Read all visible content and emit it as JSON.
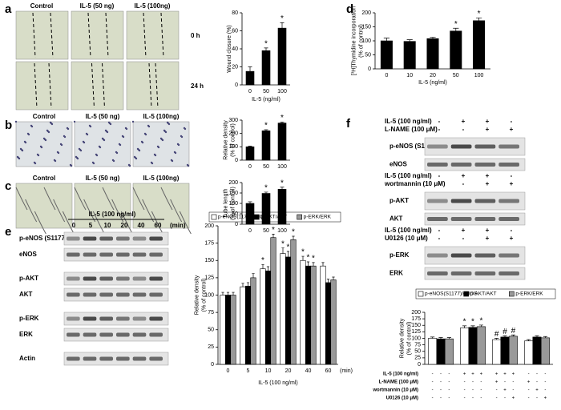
{
  "panel_labels": [
    "a",
    "b",
    "c",
    "d",
    "e",
    "f"
  ],
  "images": {
    "a": {
      "columns": [
        "Control",
        "IL-5 (50 ng)",
        "IL-5 (100ng)"
      ],
      "rows": [
        "0 h",
        "24 h"
      ]
    },
    "b": {
      "columns": [
        "Control",
        "IL-5 (50 ng)",
        "IL-5 (100ng)"
      ]
    },
    "c": {
      "columns": [
        "Control",
        "IL-5 (50 ng)",
        "IL-5 (100ng)"
      ]
    }
  },
  "blots": {
    "e": {
      "header": "IL-5 (100 ng/ml)",
      "lanes": [
        "0",
        "5",
        "10",
        "20",
        "40",
        "60"
      ],
      "unit": "(min)",
      "rows": [
        "p-eNOS (S1177)",
        "eNOS",
        "p-AKT",
        "AKT",
        "p-ERK",
        "ERK",
        "Actin"
      ]
    },
    "f": {
      "groups": [
        {
          "treatments": [
            {
              "name": "IL-5 (100 ng/ml)",
              "signs": [
                "-",
                "+",
                "+",
                "-"
              ]
            },
            {
              "name": "L-NAME (100 μM)",
              "signs": [
                "-",
                "-",
                "+",
                "+"
              ]
            }
          ],
          "rows": [
            "p-eNOS (S1177)",
            "eNOS"
          ]
        },
        {
          "treatments": [
            {
              "name": "IL-5 (100 ng/ml)",
              "signs": [
                "-",
                "+",
                "+",
                "-"
              ]
            },
            {
              "name": "wortmannin (10 μM)",
              "signs": [
                "-",
                "-",
                "+",
                "+"
              ]
            }
          ],
          "rows": [
            "p-AKT",
            "AKT"
          ]
        },
        {
          "treatments": [
            {
              "name": "IL-5 (100 ng/ml)",
              "signs": [
                "-",
                "+",
                "+",
                "-"
              ]
            },
            {
              "name": "U0126 (10 μM)",
              "signs": [
                "-",
                "-",
                "+",
                "+"
              ]
            }
          ],
          "rows": [
            "p-ERK",
            "ERK"
          ]
        }
      ]
    }
  },
  "chart_data": [
    {
      "type": "bar",
      "ylabel": [
        "Wound closure (%)"
      ],
      "xlabel": "IL-5 (ng/ml)",
      "categories": [
        "0",
        "50",
        "100"
      ],
      "values": [
        15,
        38,
        63
      ],
      "errors": [
        5,
        3,
        6
      ],
      "significance": [
        null,
        "*",
        "*"
      ],
      "color": "#000000",
      "ylim": [
        0,
        80
      ],
      "yticks": [
        0,
        20,
        40,
        60,
        80
      ]
    },
    {
      "type": "bar",
      "ylabel": [
        "[³H]Thymidine incorporation",
        "(% of control)"
      ],
      "xlabel": "IL-5 (ng/ml)",
      "categories": [
        "0",
        "10",
        "20",
        "50",
        "100"
      ],
      "values": [
        100,
        98,
        108,
        135,
        172
      ],
      "errors": [
        10,
        6,
        5,
        10,
        10
      ],
      "significance": [
        null,
        null,
        null,
        "*",
        "*"
      ],
      "color": "#000000",
      "ylim": [
        0,
        200
      ],
      "yticks": [
        0,
        50,
        100,
        150,
        200
      ]
    },
    {
      "type": "bar",
      "ylabel": [
        "Relative density",
        "(% of control)"
      ],
      "categories": [
        "0",
        "50",
        "100"
      ],
      "values": [
        100,
        220,
        278
      ],
      "errors": [
        5,
        8,
        8
      ],
      "significance": [
        null,
        "*",
        "*"
      ],
      "color": "#000000",
      "ylim": [
        0,
        300
      ],
      "yticks": [
        0,
        100,
        200,
        300
      ]
    },
    {
      "type": "bar",
      "ylabel": [
        "Tube length",
        "(% of control)"
      ],
      "categories": [
        "0",
        "50",
        "100"
      ],
      "values": [
        100,
        148,
        168
      ],
      "errors": [
        8,
        6,
        10
      ],
      "significance": [
        null,
        "*",
        "*"
      ],
      "color": "#000000",
      "ylim": [
        0,
        200
      ],
      "yticks": [
        0,
        50,
        100,
        150,
        200
      ]
    },
    {
      "type": "bar",
      "ylabel": [
        "Relative density",
        "(% of control)"
      ],
      "xlabel": "IL-5 (100 ng/ml)",
      "x_unit": "(min)",
      "categories": [
        "0",
        "5",
        "10",
        "20",
        "40",
        "60"
      ],
      "series": [
        {
          "name": "p-eNOS(1177)/eNOS",
          "color": "#ffffff",
          "values": [
            100,
            112,
            138,
            160,
            150,
            142
          ],
          "errors": [
            4,
            5,
            6,
            8,
            6,
            5
          ],
          "significance": [
            null,
            null,
            "*",
            "*",
            "*",
            null
          ]
        },
        {
          "name": "p-AKT/AKT",
          "color": "#000000",
          "values": [
            100,
            113,
            135,
            155,
            142,
            118
          ],
          "errors": [
            4,
            5,
            6,
            8,
            6,
            5
          ],
          "significance": [
            null,
            null,
            null,
            "*",
            "*",
            null
          ]
        },
        {
          "name": "p-ERK/ERK",
          "color": "#999999",
          "values": [
            100,
            125,
            183,
            180,
            142,
            122
          ],
          "errors": [
            4,
            6,
            5,
            5,
            5,
            4
          ],
          "significance": [
            null,
            null,
            "*",
            "*",
            "*",
            null
          ]
        }
      ],
      "ylim": [
        0,
        200
      ],
      "yticks": [
        0,
        25,
        50,
        75,
        100,
        125,
        150,
        175,
        200
      ]
    },
    {
      "type": "bar",
      "ylabel": [
        "Relative density",
        "(% of control)"
      ],
      "categories": [
        null,
        null,
        null,
        null
      ],
      "series": [
        {
          "name": "p-eNOS(S1177)/eNOS",
          "color": "#ffffff",
          "values": [
            100,
            140,
            95,
            90
          ],
          "errors": [
            5,
            8,
            5,
            5
          ],
          "significance": [
            null,
            "*",
            "#",
            null
          ]
        },
        {
          "name": "p-AKT/AKT",
          "color": "#000000",
          "values": [
            98,
            142,
            105,
            105
          ],
          "errors": [
            5,
            6,
            5,
            5
          ],
          "significance": [
            null,
            "*",
            "#",
            null
          ]
        },
        {
          "name": "p-ERK/ERK",
          "color": "#999999",
          "values": [
            98,
            145,
            108,
            102
          ],
          "errors": [
            5,
            6,
            5,
            5
          ],
          "significance": [
            null,
            "*",
            "#",
            null
          ]
        }
      ],
      "conditions": [
        {
          "name": "IL-5 (100 ng/ml)",
          "signs": [
            "-",
            "-",
            "-",
            "+",
            "+",
            "+",
            "+",
            "+",
            "+",
            "-",
            "-",
            "-"
          ]
        },
        {
          "name": "L-NAME (100 μM)",
          "signs": [
            "-",
            "-",
            "-",
            "-",
            "-",
            "-",
            "+",
            "-",
            "-",
            "+",
            "-",
            "-"
          ]
        },
        {
          "name": "wortmannin (10 μM)",
          "signs": [
            "-",
            "-",
            "-",
            "-",
            "-",
            "-",
            "-",
            "+",
            "-",
            "-",
            "+",
            "-"
          ]
        },
        {
          "name": "U0126 (10 μM)",
          "signs": [
            "-",
            "-",
            "-",
            "-",
            "-",
            "-",
            "-",
            "-",
            "+",
            "-",
            "-",
            "+"
          ]
        }
      ],
      "ylim": [
        0,
        200
      ],
      "yticks": [
        0,
        25,
        50,
        75,
        100,
        125,
        150,
        175,
        200
      ]
    }
  ]
}
